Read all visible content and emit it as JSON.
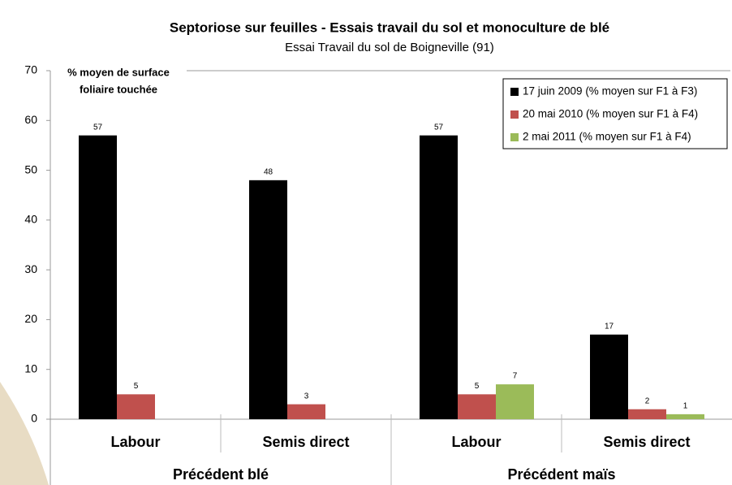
{
  "chart_data": {
    "type": "bar",
    "title": "Septoriose sur feuilles - Essais travail du sol et monoculture de blé",
    "subtitle": "Essai Travail du sol de Boigneville (91)",
    "y_label": [
      "% moyen de surface",
      "foliaire touchée"
    ],
    "categories": [
      "Labour",
      "Semis direct",
      "Labour",
      "Semis direct"
    ],
    "groups": [
      {
        "label": "Précédent blé",
        "span": 2
      },
      {
        "label": "Précédent maïs",
        "span": 2
      }
    ],
    "series": [
      {
        "name": "17 juin 2009 (% moyen sur F1 à F3)",
        "color": "#000000",
        "values": [
          57,
          48,
          57,
          17
        ]
      },
      {
        "name": "20 mai 2010 (% moyen sur F1 à F4)",
        "color": "#c0504d",
        "values": [
          5,
          3,
          5,
          2
        ]
      },
      {
        "name": "2 mai 2011 (% moyen sur F1 à F4)",
        "color": "#9bbb59",
        "values": [
          null,
          null,
          7,
          1
        ]
      }
    ],
    "ylim": [
      0,
      70
    ],
    "yticks": [
      0,
      10,
      20,
      30,
      40,
      50,
      60,
      70
    ],
    "legend": "upper right",
    "grid": false
  }
}
